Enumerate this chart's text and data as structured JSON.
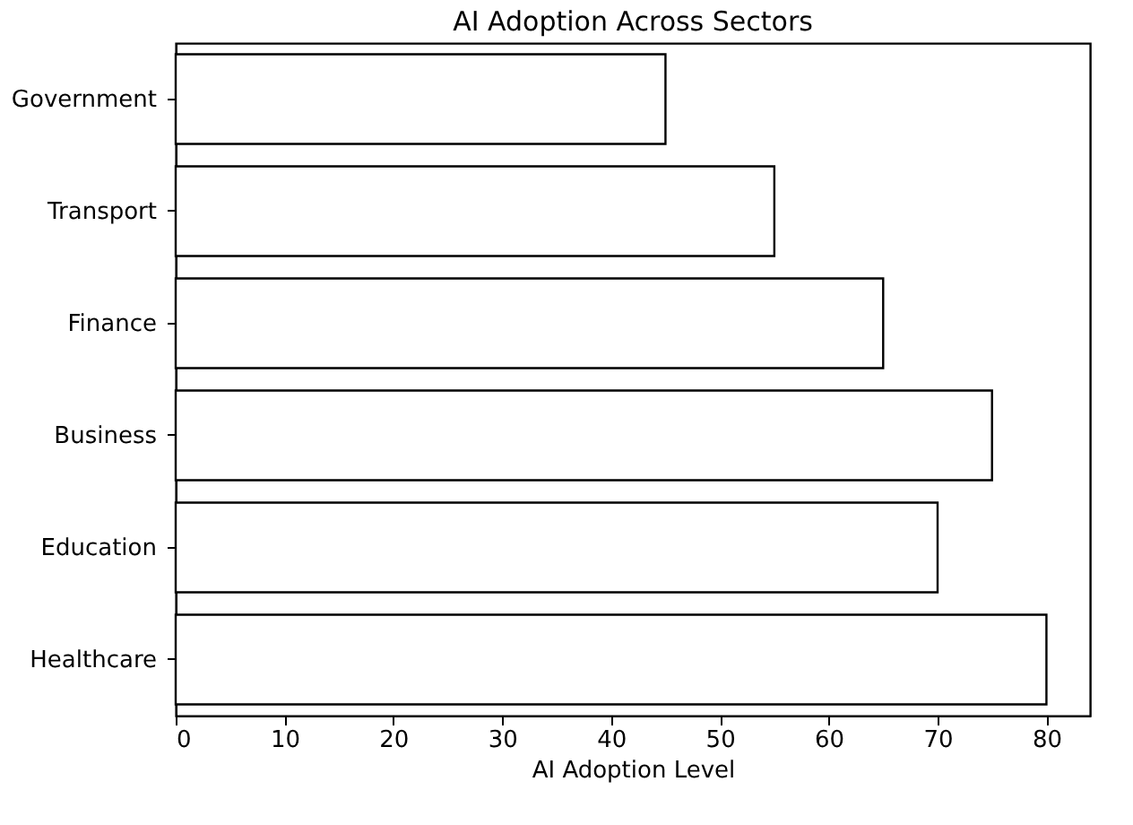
{
  "chart_data": {
    "type": "bar",
    "orientation": "horizontal",
    "title": "AI Adoption Across Sectors",
    "xlabel": "AI Adoption Level",
    "categories": [
      "Government",
      "Transport",
      "Finance",
      "Business",
      "Education",
      "Healthcare"
    ],
    "values": [
      45,
      55,
      65,
      75,
      70,
      80
    ],
    "color": "#ffffff",
    "xlim": [
      0,
      84
    ],
    "xticks": [
      0,
      10,
      20,
      30,
      40,
      50,
      60,
      70,
      80
    ],
    "grid": false
  }
}
